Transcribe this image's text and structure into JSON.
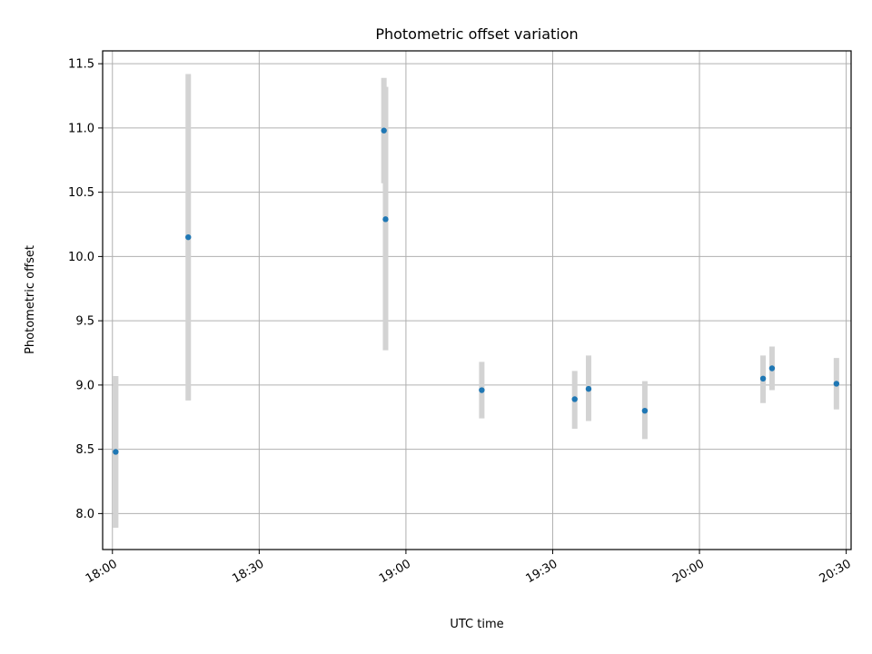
{
  "chart_data": {
    "type": "scatter",
    "title": "Photometric offset variation",
    "xlabel": "UTC time",
    "ylabel": "Photometric offset",
    "grid": true,
    "x_unit": "UTC time (HH:MM)",
    "xlim": [
      "17:58",
      "20:31"
    ],
    "ylim": [
      7.72,
      11.6
    ],
    "x_ticks": [
      "18:00",
      "18:30",
      "19:00",
      "19:30",
      "20:00",
      "20:30"
    ],
    "y_ticks": [
      "8.0",
      "8.5",
      "9.0",
      "9.5",
      "10.0",
      "10.5",
      "11.0",
      "11.5"
    ],
    "series": [
      {
        "color": "#1f77b4",
        "errorbar_color": "#d3d3d3",
        "points": [
          {
            "x": "18:00:40",
            "y": 8.48,
            "y_low": 7.89,
            "y_high": 9.07
          },
          {
            "x": "18:15:30",
            "y": 10.15,
            "y_low": 8.88,
            "y_high": 11.42
          },
          {
            "x": "18:55:30",
            "y": 10.98,
            "y_low": 10.57,
            "y_high": 11.39
          },
          {
            "x": "18:55:50",
            "y": 10.29,
            "y_low": 9.27,
            "y_high": 11.32
          },
          {
            "x": "19:15:30",
            "y": 8.96,
            "y_low": 8.74,
            "y_high": 9.18
          },
          {
            "x": "19:34:30",
            "y": 8.89,
            "y_low": 8.66,
            "y_high": 9.11
          },
          {
            "x": "19:37:20",
            "y": 8.97,
            "y_low": 8.72,
            "y_high": 9.23
          },
          {
            "x": "19:48:50",
            "y": 8.8,
            "y_low": 8.58,
            "y_high": 9.03
          },
          {
            "x": "20:13:00",
            "y": 9.05,
            "y_low": 8.86,
            "y_high": 9.23
          },
          {
            "x": "20:14:50",
            "y": 9.13,
            "y_low": 8.96,
            "y_high": 9.3
          },
          {
            "x": "20:28:00",
            "y": 9.01,
            "y_low": 8.81,
            "y_high": 9.21
          }
        ]
      }
    ]
  }
}
